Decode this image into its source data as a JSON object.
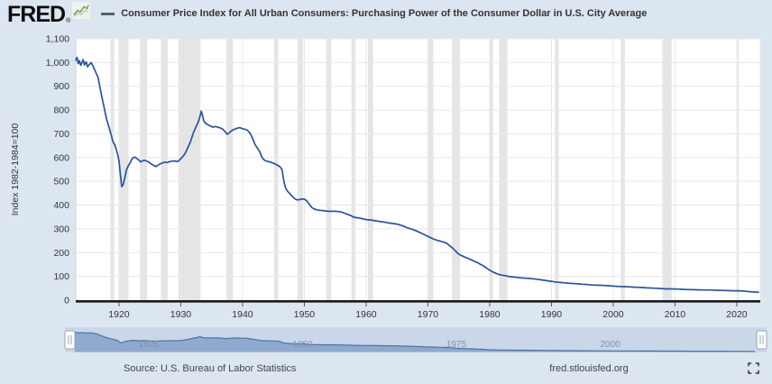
{
  "header": {
    "logo_text": "FRED",
    "registered_mark": "®",
    "legend_label": "Consumer Price Index for All Urban Consumers: Purchasing Power of the Consumer Dollar in U.S. City Average"
  },
  "footer": {
    "source_label": "Source: U.S. Bureau of Labor Statistics",
    "site_url": "fred.stlouisfed.org"
  },
  "colors": {
    "page_bg": "#dce6f1",
    "plot_bg": "#ffffff",
    "line": "#29549a",
    "grid": "#e8e8e8",
    "recession_band": "#e5e5e5",
    "axis": "#1a1a1a",
    "tick_label": "#333333",
    "slider_track": "#cad7e9",
    "slider_area_fill": "#8fa9cf",
    "slider_area_line": "#4a74a8",
    "slider_label": "#8291a6",
    "handle_fill": "#ffffff",
    "handle_border": "#98a2ae"
  },
  "chart_data": {
    "type": "line",
    "title": "Consumer Price Index for All Urban Consumers: Purchasing Power of the Consumer Dollar in U.S. City Average",
    "ylabel": "Index 1982-1984=100",
    "xlabel": "",
    "x_range": [
      1913,
      2023.8
    ],
    "ylim": [
      0,
      1100
    ],
    "grid": true,
    "x_ticks": [
      1920,
      1930,
      1940,
      1950,
      1960,
      1970,
      1980,
      1990,
      2000,
      2010,
      2020
    ],
    "y_ticks": [
      0,
      100,
      200,
      300,
      400,
      500,
      600,
      700,
      800,
      900,
      1000,
      1100
    ],
    "slider_year_labels": [
      1925,
      1950,
      1975,
      2000
    ],
    "recessions": [
      [
        1918.62,
        1919.21
      ],
      [
        1920.04,
        1921.54
      ],
      [
        1923.38,
        1924.54
      ],
      [
        1926.79,
        1927.88
      ],
      [
        1929.62,
        1933.21
      ],
      [
        1937.38,
        1938.46
      ],
      [
        1945.12,
        1945.79
      ],
      [
        1948.88,
        1949.79
      ],
      [
        1953.54,
        1954.38
      ],
      [
        1957.62,
        1958.29
      ],
      [
        1960.29,
        1961.12
      ],
      [
        1969.96,
        1970.88
      ],
      [
        1973.88,
        1975.21
      ],
      [
        1980.04,
        1980.54
      ],
      [
        1981.54,
        1982.88
      ],
      [
        1990.54,
        1991.21
      ],
      [
        2001.21,
        2001.88
      ],
      [
        2007.96,
        2009.46
      ],
      [
        2020.12,
        2020.33
      ]
    ],
    "series": [
      {
        "name": "Consumer Price Index for All Urban Consumers: Purchasing Power of the Consumer Dollar in U.S. City Average",
        "points": [
          [
            1913,
            1010
          ],
          [
            1913.2,
            1022
          ],
          [
            1913.4,
            995
          ],
          [
            1913.6,
            1008
          ],
          [
            1913.8,
            988
          ],
          [
            1914,
            1000
          ],
          [
            1914.2,
            1012
          ],
          [
            1914.4,
            990
          ],
          [
            1914.7,
            1003
          ],
          [
            1914.9,
            982
          ],
          [
            1915.2,
            992
          ],
          [
            1915.5,
            1000
          ],
          [
            1915.8,
            985
          ],
          [
            1916,
            972
          ],
          [
            1916.3,
            955
          ],
          [
            1916.6,
            938
          ],
          [
            1917,
            885
          ],
          [
            1917.3,
            845
          ],
          [
            1917.6,
            810
          ],
          [
            1918,
            760
          ],
          [
            1918.4,
            726
          ],
          [
            1918.8,
            690
          ],
          [
            1919,
            668
          ],
          [
            1919.3,
            655
          ],
          [
            1919.5,
            640
          ],
          [
            1919.8,
            612
          ],
          [
            1920,
            585
          ],
          [
            1920.2,
            535
          ],
          [
            1920.45,
            478
          ],
          [
            1920.7,
            488
          ],
          [
            1921,
            522
          ],
          [
            1921.2,
            548
          ],
          [
            1921.5,
            565
          ],
          [
            1921.8,
            578
          ],
          [
            1922,
            590
          ],
          [
            1922.3,
            600
          ],
          [
            1922.6,
            602
          ],
          [
            1922.9,
            596
          ],
          [
            1923.2,
            590
          ],
          [
            1923.5,
            582
          ],
          [
            1923.8,
            586
          ],
          [
            1924.1,
            589
          ],
          [
            1924.4,
            586
          ],
          [
            1924.8,
            582
          ],
          [
            1925.1,
            575
          ],
          [
            1925.4,
            570
          ],
          [
            1925.7,
            566
          ],
          [
            1926,
            562
          ],
          [
            1926.3,
            568
          ],
          [
            1926.6,
            573
          ],
          [
            1927,
            577
          ],
          [
            1927.4,
            581
          ],
          [
            1927.8,
            579
          ],
          [
            1928.2,
            583
          ],
          [
            1928.6,
            585
          ],
          [
            1929,
            586
          ],
          [
            1929.4,
            583
          ],
          [
            1929.7,
            587
          ],
          [
            1930,
            596
          ],
          [
            1930.4,
            606
          ],
          [
            1930.8,
            622
          ],
          [
            1931.2,
            646
          ],
          [
            1931.6,
            668
          ],
          [
            1932,
            702
          ],
          [
            1932.4,
            726
          ],
          [
            1932.8,
            748
          ],
          [
            1933.1,
            772
          ],
          [
            1933.3,
            795
          ],
          [
            1933.5,
            780
          ],
          [
            1933.7,
            756
          ],
          [
            1934,
            744
          ],
          [
            1934.4,
            738
          ],
          [
            1934.8,
            733
          ],
          [
            1935.2,
            728
          ],
          [
            1935.6,
            731
          ],
          [
            1936,
            728
          ],
          [
            1936.4,
            725
          ],
          [
            1936.8,
            719
          ],
          [
            1937.2,
            708
          ],
          [
            1937.5,
            698
          ],
          [
            1937.8,
            703
          ],
          [
            1938.1,
            710
          ],
          [
            1938.4,
            716
          ],
          [
            1938.8,
            720
          ],
          [
            1939.2,
            724
          ],
          [
            1939.6,
            726
          ],
          [
            1940,
            721
          ],
          [
            1940.4,
            719
          ],
          [
            1940.8,
            715
          ],
          [
            1941.2,
            703
          ],
          [
            1941.6,
            683
          ],
          [
            1942,
            655
          ],
          [
            1942.4,
            640
          ],
          [
            1942.8,
            624
          ],
          [
            1943.2,
            598
          ],
          [
            1943.6,
            588
          ],
          [
            1944,
            584
          ],
          [
            1944.5,
            581
          ],
          [
            1945,
            576
          ],
          [
            1945.5,
            570
          ],
          [
            1946,
            563
          ],
          [
            1946.4,
            549
          ],
          [
            1946.6,
            512
          ],
          [
            1946.8,
            488
          ],
          [
            1947,
            470
          ],
          [
            1947.3,
            458
          ],
          [
            1947.6,
            450
          ],
          [
            1948,
            438
          ],
          [
            1948.4,
            428
          ],
          [
            1948.8,
            422
          ],
          [
            1949.2,
            423
          ],
          [
            1949.6,
            426
          ],
          [
            1950,
            425
          ],
          [
            1950.4,
            418
          ],
          [
            1950.8,
            404
          ],
          [
            1951.2,
            390
          ],
          [
            1951.6,
            384
          ],
          [
            1952,
            380
          ],
          [
            1952.5,
            378
          ],
          [
            1953,
            377
          ],
          [
            1953.5,
            375
          ],
          [
            1954,
            374
          ],
          [
            1954.5,
            374
          ],
          [
            1955,
            374
          ],
          [
            1955.5,
            373
          ],
          [
            1956,
            371
          ],
          [
            1956.5,
            366
          ],
          [
            1957,
            361
          ],
          [
            1957.5,
            356
          ],
          [
            1958,
            349
          ],
          [
            1958.5,
            347
          ],
          [
            1959,
            345
          ],
          [
            1959.5,
            342
          ],
          [
            1960,
            339
          ],
          [
            1960.5,
            338
          ],
          [
            1961,
            336
          ],
          [
            1961.5,
            334
          ],
          [
            1962,
            332
          ],
          [
            1962.5,
            330
          ],
          [
            1963,
            328
          ],
          [
            1963.5,
            326
          ],
          [
            1964,
            324
          ],
          [
            1964.5,
            322
          ],
          [
            1965,
            320
          ],
          [
            1965.5,
            316
          ],
          [
            1966,
            312
          ],
          [
            1966.5,
            306
          ],
          [
            1967,
            302
          ],
          [
            1967.5,
            298
          ],
          [
            1968,
            293
          ],
          [
            1968.5,
            287
          ],
          [
            1969,
            281
          ],
          [
            1969.5,
            275
          ],
          [
            1970,
            268
          ],
          [
            1970.5,
            262
          ],
          [
            1971,
            256
          ],
          [
            1971.5,
            252
          ],
          [
            1972,
            248
          ],
          [
            1972.5,
            245
          ],
          [
            1973,
            240
          ],
          [
            1973.5,
            230
          ],
          [
            1974,
            219
          ],
          [
            1974.5,
            206
          ],
          [
            1975,
            194
          ],
          [
            1975.5,
            187
          ],
          [
            1976,
            181
          ],
          [
            1976.5,
            176
          ],
          [
            1977,
            170
          ],
          [
            1977.5,
            164
          ],
          [
            1978,
            158
          ],
          [
            1978.5,
            151
          ],
          [
            1979,
            144
          ],
          [
            1979.5,
            135
          ],
          [
            1980,
            126
          ],
          [
            1980.5,
            119
          ],
          [
            1981,
            113
          ],
          [
            1981.5,
            108
          ],
          [
            1982,
            105
          ],
          [
            1982.5,
            103
          ],
          [
            1983,
            100
          ],
          [
            1983.5,
            98.5
          ],
          [
            1984,
            97
          ],
          [
            1984.5,
            95.5
          ],
          [
            1985,
            94
          ],
          [
            1985.5,
            93
          ],
          [
            1986,
            92.3
          ],
          [
            1986.5,
            91.5
          ],
          [
            1987,
            89.8
          ],
          [
            1987.5,
            88.3
          ],
          [
            1988,
            86.8
          ],
          [
            1988.5,
            85
          ],
          [
            1989,
            83.2
          ],
          [
            1989.5,
            81.2
          ],
          [
            1990,
            79.3
          ],
          [
            1990.5,
            77
          ],
          [
            1991,
            75.3
          ],
          [
            1991.5,
            74.2
          ],
          [
            1992,
            73.2
          ],
          [
            1992.5,
            72.1
          ],
          [
            1993,
            71.1
          ],
          [
            1993.5,
            70.1
          ],
          [
            1994,
            69.3
          ],
          [
            1994.5,
            68.4
          ],
          [
            1995,
            67.3
          ],
          [
            1995.5,
            66.4
          ],
          [
            1996,
            65.3
          ],
          [
            1996.5,
            64.2
          ],
          [
            1997,
            63.4
          ],
          [
            1997.5,
            62.8
          ],
          [
            1998,
            62.4
          ],
          [
            1998.5,
            61.8
          ],
          [
            1999,
            61.2
          ],
          [
            1999.5,
            60.2
          ],
          [
            2000,
            59.3
          ],
          [
            2000.5,
            58.4
          ],
          [
            2001,
            57.7
          ],
          [
            2001.5,
            57
          ],
          [
            2002,
            56.8
          ],
          [
            2002.5,
            56
          ],
          [
            2003,
            55.4
          ],
          [
            2003.5,
            54.8
          ],
          [
            2004,
            54.2
          ],
          [
            2004.5,
            53.3
          ],
          [
            2005,
            52.7
          ],
          [
            2005.5,
            51.7
          ],
          [
            2006,
            51.1
          ],
          [
            2006.5,
            50.4
          ],
          [
            2007,
            49.9
          ],
          [
            2007.5,
            49.2
          ],
          [
            2008,
            48.4
          ],
          [
            2008.6,
            46.9
          ],
          [
            2009,
            47.9
          ],
          [
            2009.5,
            47.6
          ],
          [
            2010,
            47.1
          ],
          [
            2010.5,
            46.6
          ],
          [
            2011,
            46
          ],
          [
            2011.5,
            45
          ],
          [
            2012,
            44.6
          ],
          [
            2012.5,
            44.2
          ],
          [
            2013,
            43.9
          ],
          [
            2013.5,
            43.5
          ],
          [
            2014,
            43.2
          ],
          [
            2014.5,
            42.8
          ],
          [
            2015,
            42.9
          ],
          [
            2015.5,
            42.7
          ],
          [
            2016,
            42.4
          ],
          [
            2016.5,
            41.9
          ],
          [
            2017,
            41.5
          ],
          [
            2017.5,
            41.1
          ],
          [
            2018,
            40.7
          ],
          [
            2018.5,
            40.2
          ],
          [
            2019,
            39.9
          ],
          [
            2019.5,
            39.5
          ],
          [
            2020,
            39.3
          ],
          [
            2020.4,
            39.4
          ],
          [
            2021,
            38.5
          ],
          [
            2021.5,
            37.3
          ],
          [
            2022,
            36
          ],
          [
            2022.5,
            34.7
          ],
          [
            2023,
            34
          ],
          [
            2023.5,
            33.4
          ]
        ]
      }
    ]
  }
}
